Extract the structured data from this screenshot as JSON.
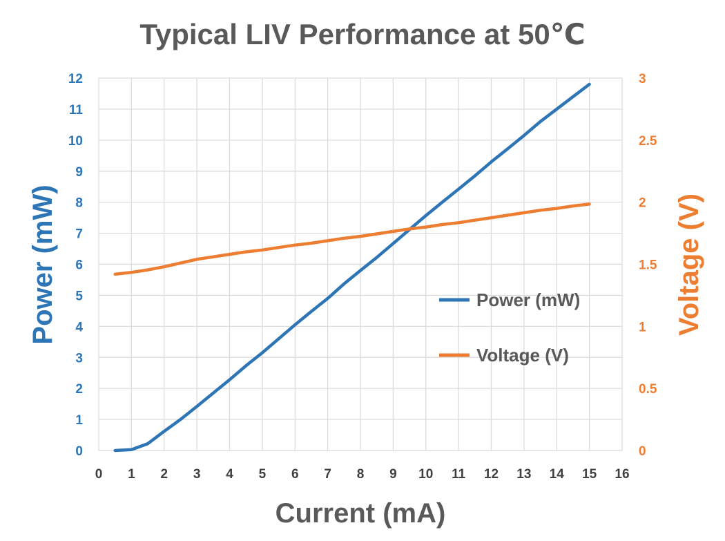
{
  "chart_data": {
    "type": "line",
    "title": "Typical LIV Performance at 50℃",
    "xlabel": "Current (mA)",
    "ylabel_left": "Power (mW)",
    "ylabel_right": "Voltage (V)",
    "xlim": [
      0,
      16
    ],
    "ylim_left": [
      0,
      12
    ],
    "ylim_right": [
      0,
      3
    ],
    "x_ticks": [
      "0",
      "1",
      "2",
      "3",
      "4",
      "5",
      "6",
      "7",
      "8",
      "9",
      "10",
      "11",
      "12",
      "13",
      "14",
      "15",
      "16"
    ],
    "y_ticks_left": [
      "0",
      "1",
      "2",
      "3",
      "4",
      "5",
      "6",
      "7",
      "8",
      "9",
      "10",
      "11",
      "12"
    ],
    "y_ticks_right": [
      "0",
      "0.5",
      "1",
      "1.5",
      "2",
      "2.5",
      "3"
    ],
    "grid": true,
    "legend_position": "center-right",
    "series": [
      {
        "name": "Power (mW)",
        "axis": "left",
        "color": "#2E75B6",
        "x": [
          0.5,
          1,
          1.5,
          2,
          2.5,
          3,
          3.5,
          4,
          4.5,
          5,
          5.5,
          6,
          6.5,
          7,
          7.5,
          8,
          8.5,
          9,
          9.5,
          10,
          10.5,
          11,
          11.5,
          12,
          12.5,
          13,
          13.5,
          14,
          14.5,
          15
        ],
        "values": [
          0.0,
          0.03,
          0.22,
          0.62,
          1.0,
          1.42,
          1.85,
          2.28,
          2.73,
          3.15,
          3.6,
          4.05,
          4.48,
          4.9,
          5.37,
          5.8,
          6.22,
          6.67,
          7.12,
          7.57,
          8.0,
          8.42,
          8.85,
          9.3,
          9.72,
          10.15,
          10.6,
          11.0,
          11.4,
          11.8
        ]
      },
      {
        "name": "Voltage (V)",
        "axis": "right",
        "color": "#ED7D31",
        "x": [
          0.5,
          1,
          1.5,
          2,
          2.5,
          3,
          3.5,
          4,
          4.5,
          5,
          5.5,
          6,
          6.5,
          7,
          7.5,
          8,
          8.5,
          9,
          9.5,
          10,
          10.5,
          11,
          11.5,
          12,
          12.5,
          13,
          13.5,
          14,
          14.5,
          15
        ],
        "values": [
          1.42,
          1.435,
          1.455,
          1.48,
          1.51,
          1.54,
          1.56,
          1.58,
          1.6,
          1.615,
          1.635,
          1.655,
          1.67,
          1.69,
          1.71,
          1.725,
          1.745,
          1.765,
          1.785,
          1.8,
          1.82,
          1.835,
          1.855,
          1.875,
          1.895,
          1.915,
          1.935,
          1.95,
          1.97,
          1.985
        ]
      }
    ]
  }
}
